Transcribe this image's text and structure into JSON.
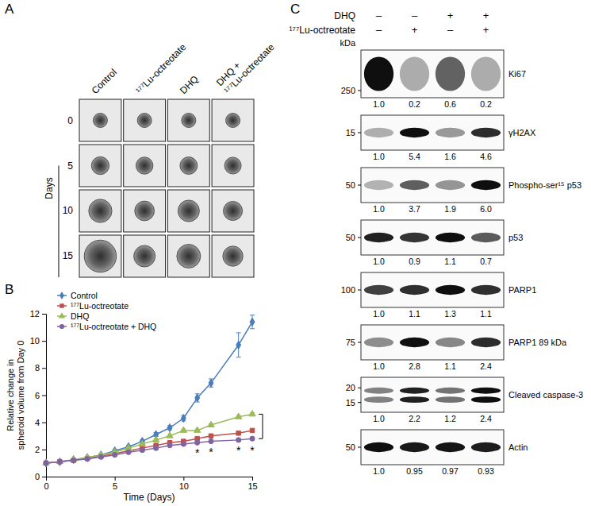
{
  "chart_data": {
    "type": "line",
    "x_label": "Time (Days)",
    "y_label": "Relative change in spheroid volume from Day 0",
    "x": [
      0,
      1,
      2,
      3,
      4,
      5,
      6,
      7,
      8,
      9,
      10,
      11,
      12,
      14,
      15
    ],
    "xlim": [
      0,
      15
    ],
    "xticks": [
      0,
      5,
      10,
      15
    ],
    "ylim": [
      0,
      12
    ],
    "yticks": [
      0,
      2,
      4,
      6,
      8,
      10,
      12
    ],
    "legend": "upper left",
    "series": [
      {
        "name": "Control",
        "color": "#4a7ebb",
        "marker": "diamond",
        "values": [
          1,
          1.1,
          1.25,
          1.4,
          1.6,
          1.9,
          2.2,
          2.6,
          3.1,
          3.6,
          4.3,
          5.8,
          6.9,
          9.7,
          11.4
        ],
        "errors": [
          0,
          0.03,
          0.05,
          0.05,
          0.08,
          0.1,
          0.1,
          0.1,
          0.15,
          0.15,
          0.2,
          0.3,
          0.3,
          0.9,
          0.5
        ]
      },
      {
        "name": "¹⁷⁷Lu-octreotate",
        "color": "#c0504d",
        "marker": "square",
        "values": [
          1,
          1.1,
          1.2,
          1.35,
          1.5,
          1.7,
          1.9,
          2.1,
          2.3,
          2.5,
          2.6,
          2.8,
          3.0,
          3.2,
          3.4
        ],
        "errors": [
          0,
          0.03,
          0.04,
          0.05,
          0.05,
          0.06,
          0.06,
          0.07,
          0.07,
          0.08,
          0.08,
          0.08,
          0.1,
          0.1,
          0.1
        ]
      },
      {
        "name": "DHQ",
        "color": "#9bbb59",
        "marker": "triangle",
        "values": [
          1,
          1.1,
          1.25,
          1.4,
          1.6,
          1.8,
          2.1,
          2.4,
          2.7,
          3.0,
          3.4,
          3.4,
          3.8,
          4.4,
          4.6
        ],
        "errors": [
          0,
          0.03,
          0.04,
          0.05,
          0.05,
          0.06,
          0.06,
          0.07,
          0.08,
          0.08,
          0.1,
          0.1,
          0.1,
          0.1,
          0.1
        ]
      },
      {
        "name": "¹⁷⁷Lu-octreotate + DHQ",
        "color": "#8064a2",
        "marker": "circle",
        "values": [
          1,
          1.1,
          1.2,
          1.3,
          1.45,
          1.6,
          1.8,
          1.95,
          2.1,
          2.3,
          2.4,
          2.5,
          2.6,
          2.7,
          2.8
        ],
        "errors": [
          0,
          0.03,
          0.04,
          0.04,
          0.05,
          0.05,
          0.06,
          0.06,
          0.07,
          0.07,
          0.08,
          0.08,
          0.08,
          0.1,
          0.1
        ]
      }
    ],
    "annotations": [
      {
        "text": "*",
        "x": 11,
        "y": 1.8
      },
      {
        "text": "*",
        "x": 12,
        "y": 1.9
      },
      {
        "text": "*",
        "x": 14,
        "y": 2.0
      },
      {
        "text": "*",
        "x": 15,
        "y": 2.0
      }
    ]
  },
  "panel_a": {
    "label": "A",
    "columns": [
      [
        "Control"
      ],
      [
        "¹⁷⁷Lu-octreotate"
      ],
      [
        "DHQ"
      ],
      [
        "DHQ +",
        "¹⁷⁷Lu-octreotate"
      ]
    ],
    "row_title": "Days",
    "rows": [
      0,
      5,
      10,
      15
    ]
  },
  "panel_b": {
    "label": "B"
  },
  "panel_c": {
    "label": "C",
    "treatments": [
      {
        "name": "DHQ",
        "signs": [
          "–",
          "–",
          "+",
          "+"
        ]
      },
      {
        "name": "¹⁷⁷Lu-octreotate",
        "signs": [
          "–",
          "+",
          "–",
          "+"
        ]
      }
    ],
    "unit": "kDa",
    "blots": [
      {
        "name": "Ki67",
        "markers": [
          250
        ],
        "values": [
          1,
          0.2,
          0.6,
          0.2
        ],
        "value_labels": [
          "1.0",
          "0.2",
          "0.6",
          "0.2"
        ]
      },
      {
        "name": "γH2AX",
        "markers": [
          15
        ],
        "values": [
          1,
          5.4,
          1.6,
          4.6
        ],
        "value_labels": [
          "1.0",
          "5.4",
          "1.6",
          "4.6"
        ]
      },
      {
        "name": "Phospho-ser¹⁵ p53",
        "markers": [
          50
        ],
        "values": [
          1,
          3.7,
          1.9,
          6.0
        ],
        "value_labels": [
          "1.0",
          "3.7",
          "1.9",
          "6.0"
        ]
      },
      {
        "name": "p53",
        "markers": [
          50
        ],
        "values": [
          1,
          0.9,
          1.1,
          0.7
        ],
        "value_labels": [
          "1.0",
          "0.9",
          "1.1",
          "0.7"
        ]
      },
      {
        "name": "PARP1",
        "markers": [
          100
        ],
        "values": [
          1,
          1.1,
          1.3,
          1.1
        ],
        "value_labels": [
          "1.0",
          "1.1",
          "1.3",
          "1.1"
        ]
      },
      {
        "name": "PARP1 89 kDa",
        "markers": [
          75
        ],
        "values": [
          1,
          2.8,
          1.1,
          2.4
        ],
        "value_labels": [
          "1.0",
          "2.8",
          "1.1",
          "2.4"
        ]
      },
      {
        "name": "Cleaved caspase-3",
        "markers": [
          20,
          15
        ],
        "values": [
          1,
          2.2,
          1.2,
          2.4
        ],
        "value_labels": [
          "1.0",
          "2.2",
          "1.2",
          "2.4"
        ]
      },
      {
        "name": "Actin",
        "markers": [
          50
        ],
        "values": [
          1,
          0.95,
          0.97,
          0.93
        ],
        "value_labels": [
          "1.0",
          "0.95",
          "0.97",
          "0.93"
        ]
      }
    ]
  }
}
